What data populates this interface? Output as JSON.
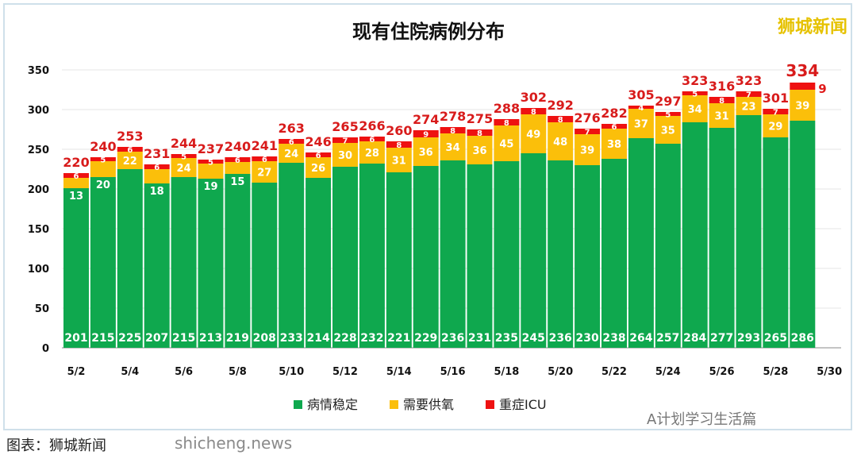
{
  "chart_data": {
    "type": "bar",
    "stacked": true,
    "title": "现有住院病例分布",
    "categories": [
      "5/2",
      "5/3",
      "5/4",
      "5/5",
      "5/6",
      "5/7",
      "5/8",
      "5/9",
      "5/10",
      "5/11",
      "5/12",
      "5/13",
      "5/14",
      "5/15",
      "5/16",
      "5/17",
      "5/18",
      "5/19",
      "5/20",
      "5/21",
      "5/22",
      "5/23",
      "5/24",
      "5/25",
      "5/26",
      "5/27",
      "5/28",
      "5/29"
    ],
    "x_tick_labels": [
      "5/2",
      "5/4",
      "5/6",
      "5/8",
      "5/10",
      "5/12",
      "5/14",
      "5/16",
      "5/18",
      "5/20",
      "5/22",
      "5/24",
      "5/26",
      "5/28",
      "5/30"
    ],
    "series": [
      {
        "name": "病情稳定",
        "color": "#0fa84e",
        "values": [
          201,
          215,
          225,
          207,
          215,
          213,
          219,
          208,
          233,
          214,
          228,
          232,
          221,
          229,
          236,
          231,
          235,
          245,
          236,
          230,
          238,
          264,
          257,
          284,
          277,
          293,
          265,
          286
        ]
      },
      {
        "name": "需要供氧",
        "color": "#fbbf0a",
        "values": [
          13,
          20,
          22,
          18,
          24,
          19,
          15,
          27,
          24,
          26,
          30,
          28,
          31,
          36,
          34,
          36,
          45,
          49,
          48,
          39,
          38,
          37,
          35,
          34,
          31,
          23,
          29,
          39
        ]
      },
      {
        "name": "重症ICU",
        "color": "#ee1111",
        "values": [
          6,
          5,
          6,
          6,
          5,
          5,
          6,
          6,
          6,
          6,
          7,
          6,
          8,
          9,
          8,
          8,
          8,
          8,
          8,
          7,
          6,
          4,
          5,
          5,
          8,
          7,
          7,
          9
        ]
      }
    ],
    "totals": [
      220,
      240,
      253,
      231,
      244,
      237,
      240,
      241,
      263,
      246,
      265,
      266,
      260,
      274,
      278,
      275,
      288,
      302,
      292,
      276,
      282,
      305,
      297,
      323,
      316,
      323,
      301,
      334
    ],
    "ylim": [
      0,
      350
    ],
    "yticks": [
      0,
      50,
      100,
      150,
      200,
      250,
      300,
      350
    ],
    "grid": true,
    "legend": "bottom"
  },
  "watermark": "狮城新闻",
  "footer": "图表：狮城新闻",
  "footer_watermark": "shicheng.news",
  "wechat_watermark": "A计划学习生活篇"
}
